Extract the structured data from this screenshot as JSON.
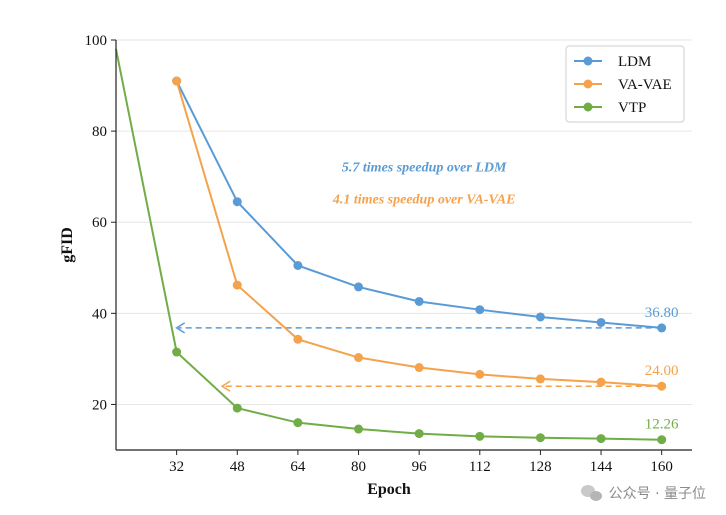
{
  "chart_data": {
    "type": "line",
    "xlabel": "Epoch",
    "ylabel": "gFID",
    "x": [
      16,
      32,
      48,
      64,
      80,
      96,
      112,
      128,
      144,
      160
    ],
    "xticks": [
      32,
      48,
      64,
      80,
      96,
      112,
      128,
      144,
      160
    ],
    "yticks": [
      20,
      40,
      60,
      80,
      100
    ],
    "xlim": [
      16,
      168
    ],
    "ylim": [
      10,
      100
    ],
    "grid": true,
    "legend_position": "top-right",
    "series": [
      {
        "name": "LDM",
        "color": "#5b9bd5",
        "points": [
          [
            32,
            91.0
          ],
          [
            48,
            64.5
          ],
          [
            64,
            50.5
          ],
          [
            80,
            45.8
          ],
          [
            96,
            42.6
          ],
          [
            112,
            40.8
          ],
          [
            128,
            39.2
          ],
          [
            144,
            38.0
          ],
          [
            160,
            36.8
          ]
        ]
      },
      {
        "name": "VA-VAE",
        "color": "#f5a24c",
        "points": [
          [
            32,
            91.0
          ],
          [
            48,
            46.2
          ],
          [
            64,
            34.3
          ],
          [
            80,
            30.3
          ],
          [
            96,
            28.1
          ],
          [
            112,
            26.6
          ],
          [
            128,
            25.6
          ],
          [
            144,
            24.9
          ],
          [
            160,
            24.0
          ]
        ]
      },
      {
        "name": "VTP",
        "color": "#70ad47",
        "points": [
          [
            16,
            98.0
          ],
          [
            32,
            31.5
          ],
          [
            48,
            19.2
          ],
          [
            64,
            16.0
          ],
          [
            80,
            14.6
          ],
          [
            96,
            13.6
          ],
          [
            112,
            13.0
          ],
          [
            128,
            12.7
          ],
          [
            144,
            12.5
          ],
          [
            160,
            12.26
          ]
        ]
      }
    ],
    "annotations": [
      {
        "text": "5.7 times speedup over LDM",
        "color": "#5b9bd5",
        "x": 96,
        "y": 72
      },
      {
        "text": "4.1 times speedup over VA-VAE",
        "color": "#f5a24c",
        "x": 96,
        "y": 65
      }
    ],
    "speedup_arrows": [
      {
        "color": "#5b9bd5",
        "from": [
          160,
          36.8
        ],
        "to": [
          32,
          36.8
        ]
      },
      {
        "color": "#f5a24c",
        "from": [
          160,
          24.0
        ],
        "to": [
          44,
          24.0
        ]
      }
    ],
    "end_labels": [
      {
        "text": "36.80",
        "color": "#5b9bd5",
        "x": 160,
        "y": 36.8
      },
      {
        "text": "24.00",
        "color": "#f5a24c",
        "x": 160,
        "y": 24.0
      },
      {
        "text": "12.26",
        "color": "#70ad47",
        "x": 160,
        "y": 12.26
      }
    ]
  },
  "watermark": {
    "text": "公众号 · 量子位"
  }
}
